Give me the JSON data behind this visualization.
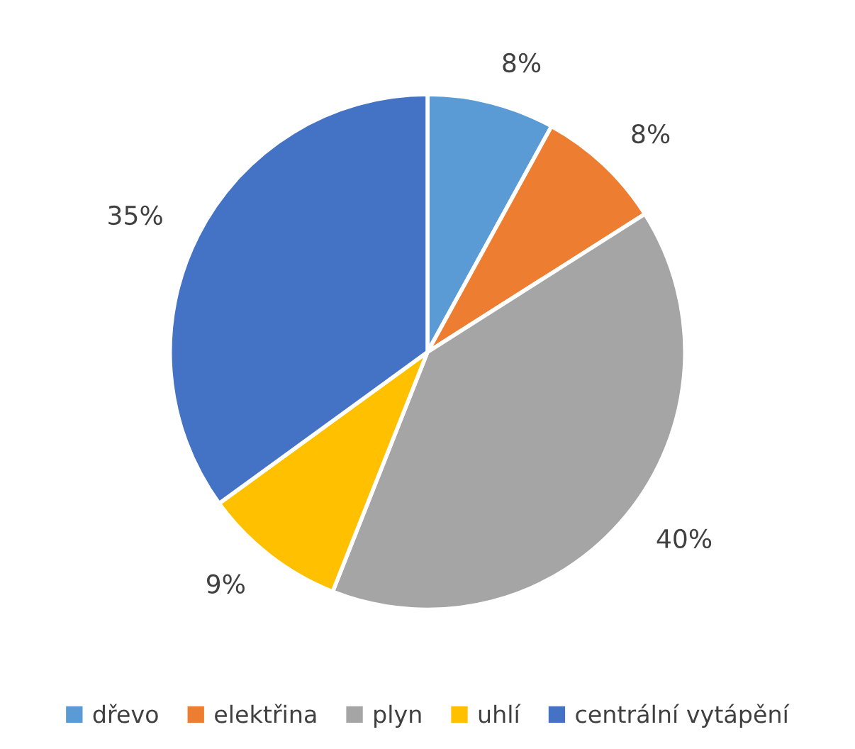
{
  "chart_data": {
    "type": "pie",
    "categories": [
      "dřevo",
      "elektřina",
      "plyn",
      "uhlí",
      "centrální vytápění"
    ],
    "values": [
      8,
      8,
      40,
      9,
      35
    ],
    "colors": [
      "#5b9bd5",
      "#ed7d31",
      "#a5a5a5",
      "#ffc000",
      "#4472c4"
    ],
    "value_labels": [
      "8%",
      "8%",
      "40%",
      "9%",
      "35%"
    ],
    "legend": "bottom"
  }
}
